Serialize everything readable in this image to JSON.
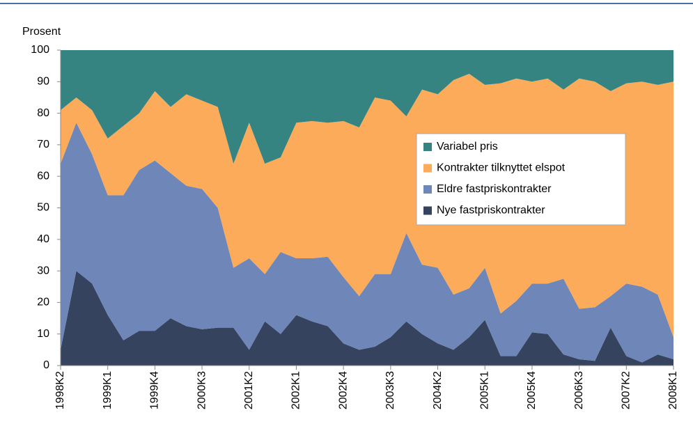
{
  "chart_data": {
    "type": "stacked_area",
    "y_label": "Prosent",
    "categories": [
      "1998K2",
      null,
      null,
      "1999K1",
      null,
      null,
      "1999K4",
      null,
      null,
      "2000K3",
      null,
      null,
      "2001K2",
      null,
      null,
      "2002K1",
      null,
      null,
      "2002K4",
      null,
      null,
      "2003K3",
      null,
      null,
      "2004K2",
      null,
      null,
      "2005K1",
      null,
      null,
      "2005K4",
      null,
      null,
      "2006K3",
      null,
      null,
      "2007K2",
      null,
      null,
      "2008K1"
    ],
    "series": [
      {
        "name": "Variabel pris",
        "color": "#358482",
        "values": [
          19,
          15,
          19,
          28,
          24,
          20,
          13,
          18,
          14,
          16,
          18,
          36,
          23,
          36,
          34,
          23,
          22.5,
          23,
          22.5,
          24.5,
          15,
          16,
          21,
          12.5,
          14,
          9.5,
          7.5,
          11,
          10.5,
          9,
          10,
          9,
          12.5,
          9,
          10,
          13,
          10.5,
          10,
          11,
          10
        ]
      },
      {
        "name": "Kontrakter tilknyttet elspot",
        "color": "#fbab5a",
        "values": [
          17,
          8,
          14,
          18,
          22,
          18,
          22,
          21,
          29,
          28,
          32,
          33,
          43,
          35,
          30,
          43,
          43.5,
          42.5,
          49.5,
          53.5,
          56,
          55,
          37,
          55.5,
          55,
          68,
          68,
          58,
          73,
          70.5,
          64,
          65,
          60,
          73,
          71.5,
          65,
          63.5,
          65,
          66.5,
          81
        ]
      },
      {
        "name": "Eldre fastpriskontrakter",
        "color": "#6f86b9",
        "values": [
          59,
          47,
          41,
          38,
          46,
          51,
          54,
          46,
          44.5,
          44.5,
          38,
          19,
          29,
          15,
          26,
          18,
          20,
          22,
          21,
          17,
          23,
          20,
          28,
          22,
          24,
          17.5,
          15.5,
          16.5,
          13.5,
          17.5,
          15.5,
          16,
          24,
          16,
          17,
          10,
          23,
          24,
          19,
          7
        ]
      },
      {
        "name": "Nye fastpriskontrakter",
        "color": "#35435f",
        "values": [
          5,
          30,
          26,
          16,
          8,
          11,
          11,
          15,
          12.5,
          11.5,
          12,
          12,
          5,
          14,
          10,
          16,
          14,
          12.5,
          7,
          5,
          6,
          9,
          14,
          10,
          7,
          5,
          9,
          14.5,
          3,
          3,
          10.5,
          10,
          3.5,
          2,
          1.5,
          12,
          3,
          1,
          3.5,
          2
        ]
      }
    ],
    "ylim": [
      0,
      100
    ],
    "yticks": [
      0,
      10,
      20,
      30,
      40,
      50,
      60,
      70,
      80,
      90,
      100
    ],
    "grid": false
  }
}
